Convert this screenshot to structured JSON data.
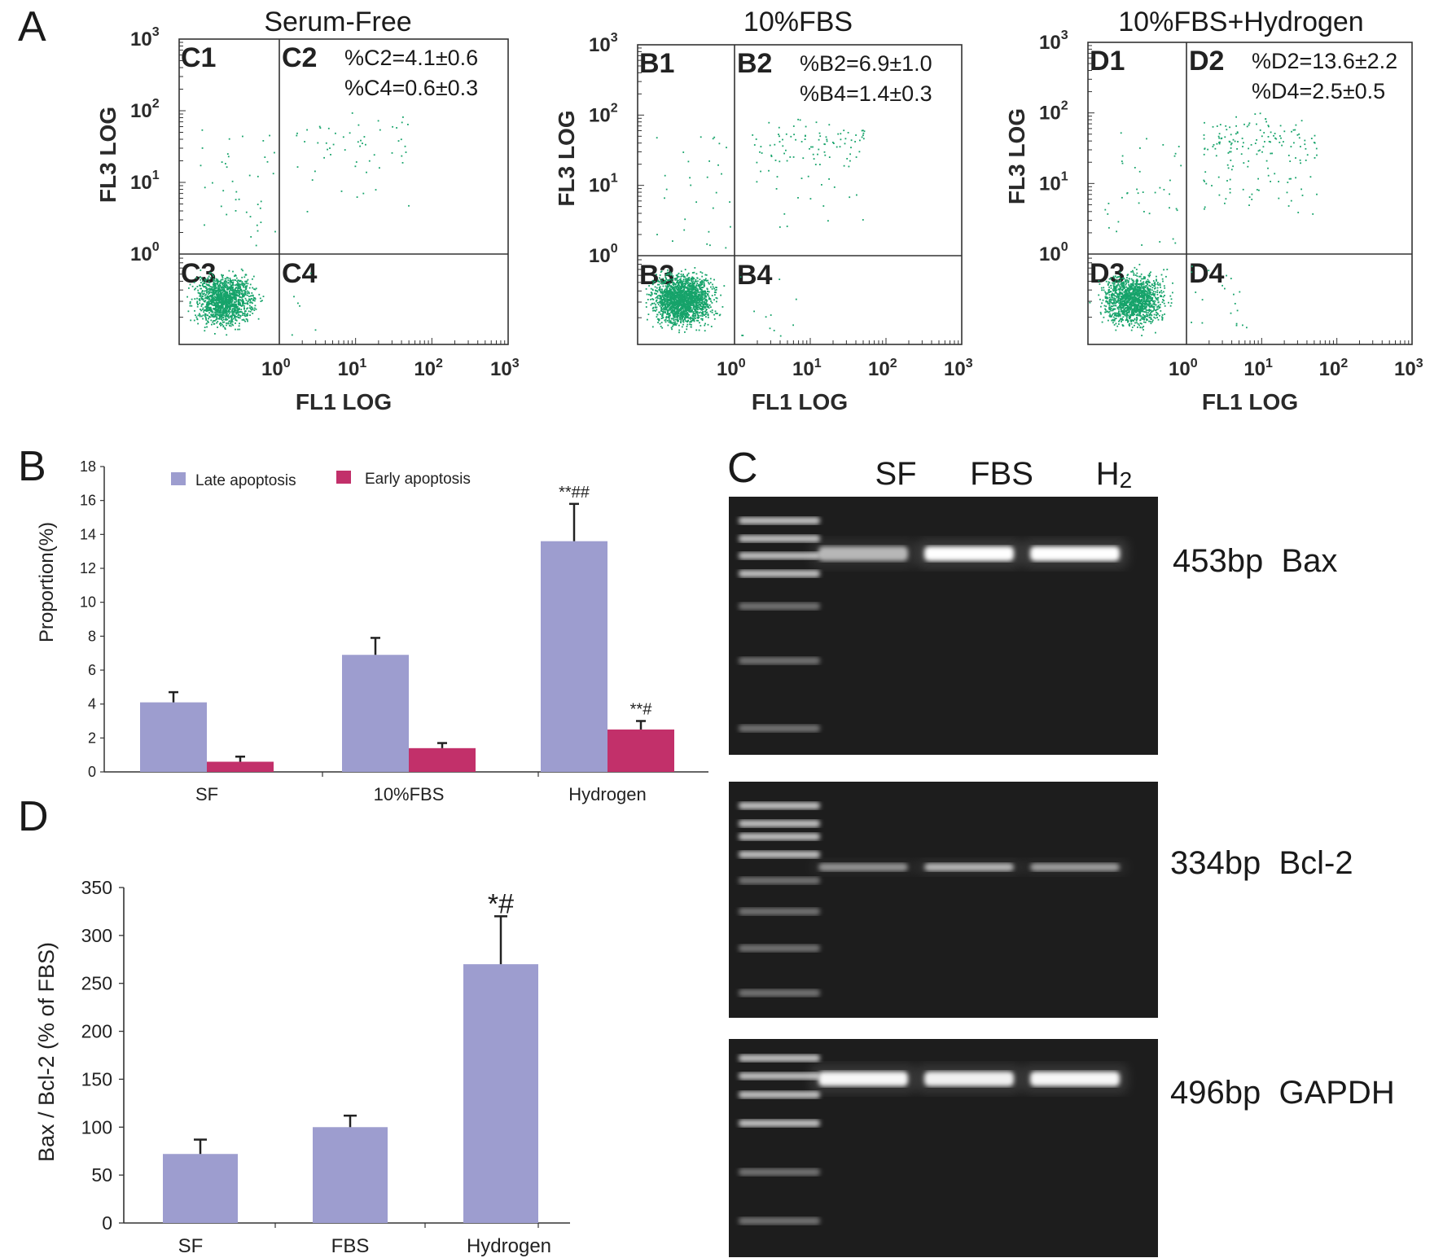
{
  "panel_labels": {
    "a": "A",
    "b": "B",
    "c": "C",
    "d": "D"
  },
  "colors": {
    "late": "#9d9dcf",
    "early": "#c2306a",
    "dots": "#16a36a",
    "gel_bg": "#161616"
  },
  "flow": {
    "x_axis_label": "FL1 LOG",
    "y_axis_label": "FL3 LOG",
    "tick_base": "10",
    "tick_exps": [
      "0",
      "1",
      "2",
      "3"
    ],
    "plots": [
      {
        "title": "Serum-Free",
        "q1": "C1",
        "q2": "C2",
        "q3": "C3",
        "q4": "C4",
        "stat_1": "%C2=4.1±0.6",
        "stat_2": "%C4=0.6±0.3"
      },
      {
        "title": "10%FBS",
        "q1": "B1",
        "q2": "B2",
        "q3": "B3",
        "q4": "B4",
        "stat_1": "%B2=6.9±1.0",
        "stat_2": "%B4=1.4±0.3"
      },
      {
        "title": "10%FBS+Hydrogen",
        "q1": "D1",
        "q2": "D2",
        "q3": "D3",
        "q4": "D4",
        "stat_1": "%D2=13.6±2.2",
        "stat_2": "%D4=2.5±0.5"
      }
    ]
  },
  "chart_data": [
    {
      "type": "bar",
      "panel": "B",
      "categories": [
        "SF",
        "10%FBS",
        "Hydrogen"
      ],
      "series": [
        {
          "name": "Late apoptosis",
          "values": [
            4.1,
            6.9,
            13.6
          ],
          "errors": [
            0.6,
            1.0,
            2.2
          ]
        },
        {
          "name": "Early apoptosis",
          "values": [
            0.6,
            1.4,
            2.5
          ],
          "errors": [
            0.3,
            0.3,
            0.5
          ]
        }
      ],
      "annotations": [
        {
          "category": "Hydrogen",
          "series": "Late apoptosis",
          "text": "**##"
        },
        {
          "category": "Hydrogen",
          "series": "Early apoptosis",
          "text": "**#"
        }
      ],
      "ylabel": "Proportion(%)",
      "ylim": [
        0,
        18
      ],
      "yticks": [
        0,
        2,
        4,
        6,
        8,
        10,
        12,
        14,
        16,
        18
      ],
      "legend": "top"
    },
    {
      "type": "bar",
      "panel": "D",
      "categories": [
        "SF",
        "FBS",
        "Hydrogen"
      ],
      "series": [
        {
          "values": [
            72,
            100,
            270
          ],
          "errors": [
            15,
            12,
            50
          ]
        }
      ],
      "annotations": [
        {
          "category": "Hydrogen",
          "text": "*#"
        }
      ],
      "ylabel": "Bax / Bcl-2 (% of FBS)",
      "ylim": [
        0,
        350
      ],
      "yticks": [
        0,
        50,
        100,
        150,
        200,
        250,
        300,
        350
      ]
    }
  ],
  "gel": {
    "lanes": [
      "SF",
      "FBS",
      "H2"
    ],
    "bands": [
      {
        "label": "453bp  Bax",
        "intensity": [
          0.55,
          1.0,
          1.0
        ]
      },
      {
        "label": "334bp  Bcl-2",
        "intensity": [
          0.35,
          0.55,
          0.4
        ]
      },
      {
        "label": "496bp  GAPDH",
        "intensity": [
          0.95,
          0.9,
          0.95
        ]
      }
    ]
  }
}
